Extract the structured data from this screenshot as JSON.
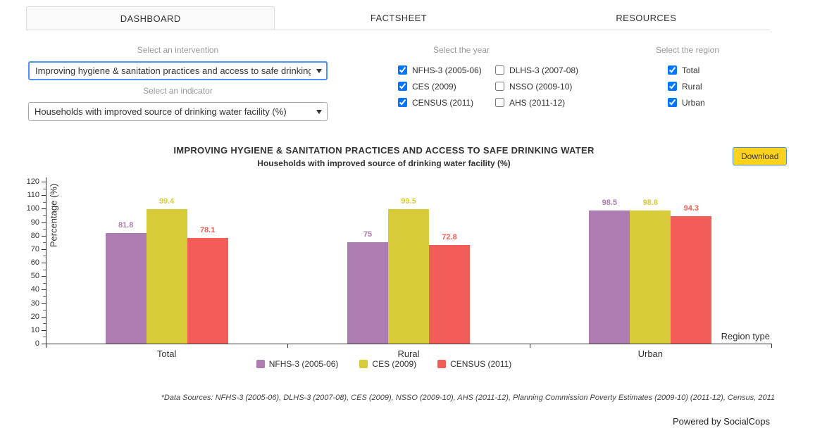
{
  "tabs": [
    {
      "label": "DASHBOARD",
      "active": true
    },
    {
      "label": "FACTSHEET",
      "active": false
    },
    {
      "label": "RESOURCES",
      "active": false
    }
  ],
  "filters": {
    "intervention": {
      "label": "Select an intervention",
      "value": "Improving hygiene & sanitation practices and access to safe drinking wa"
    },
    "indicator": {
      "label": "Select an indicator",
      "value": "Households with improved source of drinking water facility (%)"
    },
    "year": {
      "label": "Select the year",
      "options": [
        {
          "label": "NFHS-3 (2005-06)",
          "checked": true
        },
        {
          "label": "CES (2009)",
          "checked": true
        },
        {
          "label": "CENSUS (2011)",
          "checked": true
        },
        {
          "label": "DLHS-3 (2007-08)",
          "checked": false
        },
        {
          "label": "NSSO (2009-10)",
          "checked": false
        },
        {
          "label": "AHS (2011-12)",
          "checked": false
        }
      ]
    },
    "region": {
      "label": "Select the region",
      "options": [
        {
          "label": "Total",
          "checked": true
        },
        {
          "label": "Rural",
          "checked": true
        },
        {
          "label": "Urban",
          "checked": true
        }
      ]
    }
  },
  "download_label": "Download",
  "chart_data": {
    "type": "bar",
    "title": "IMPROVING HYGIENE & SANITATION PRACTICES AND ACCESS TO SAFE DRINKING WATER",
    "subtitle": "Households with improved source of drinking water facility (%)",
    "categories": [
      "Total",
      "Rural",
      "Urban"
    ],
    "series": [
      {
        "name": "NFHS-3 (2005-06)",
        "color": "#ad7cb0",
        "values": [
          81.8,
          75,
          98.5
        ]
      },
      {
        "name": "CES (2009)",
        "color": "#d8cb3a",
        "values": [
          99.4,
          99.5,
          98.8
        ]
      },
      {
        "name": "CENSUS (2011)",
        "color": "#f25e57",
        "values": [
          78.1,
          72.8,
          94.3
        ]
      }
    ],
    "xlabel": "Region type",
    "ylabel": "Percentage (%)",
    "ylim": [
      0,
      120
    ],
    "ytick_step": 10,
    "grid": false,
    "legend_position": "bottom",
    "value_labels": true
  },
  "footer": {
    "data_sources": "*Data Sources: NFHS-3 (2005-06), DLHS-3 (2007-08), CES (2009), NSSO (2009-10), AHS (2011-12), Planning Commission Poverty Estimates (2009-10) (2011-12), Census, 2011",
    "powered_by": "Powered by SocialCops"
  }
}
